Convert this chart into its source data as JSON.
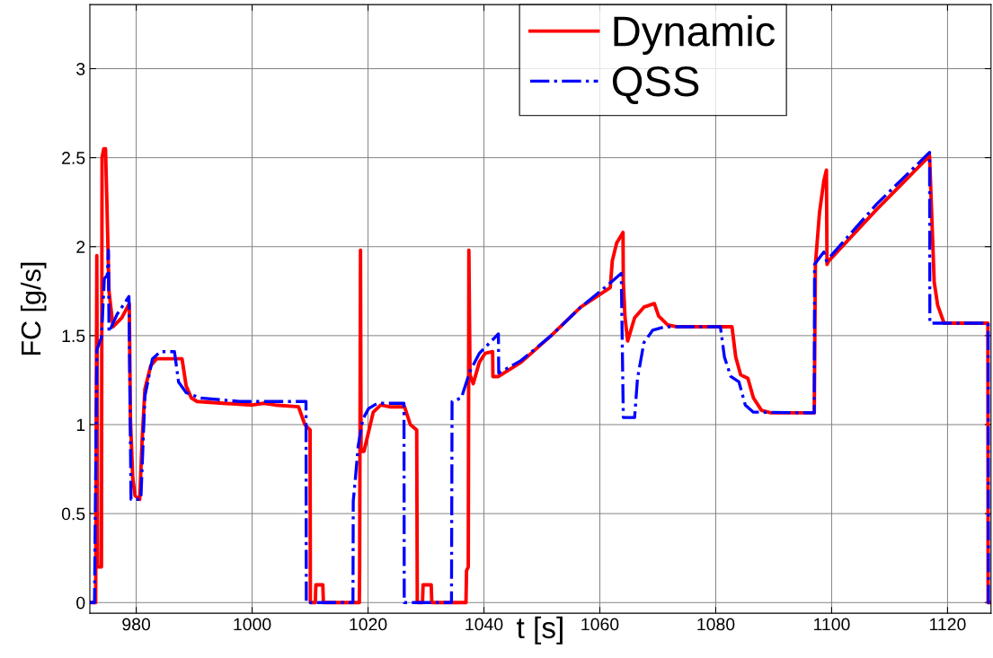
{
  "chart_data": {
    "type": "line",
    "xlabel": "t [s]",
    "ylabel": "FC [g/s]",
    "xlim": [
      972,
      1127.5
    ],
    "ylim": [
      -0.06,
      3.36
    ],
    "xticks": [
      980,
      1000,
      1020,
      1040,
      1060,
      1080,
      1100,
      1120
    ],
    "yticks": [
      0,
      0.5,
      1,
      1.5,
      2,
      2.5,
      3
    ],
    "grid": true,
    "legend": "top right",
    "marker": "none",
    "series": [
      {
        "name": "Dynamic",
        "color": "#ff0000",
        "line_style": "solid",
        "x": [
          972,
          973.0,
          973.2,
          973.35,
          973.5,
          973.7,
          973.8,
          974.0,
          974.1,
          974.4,
          974.7,
          974.9,
          975.3,
          976.0,
          977.5,
          978.8,
          979.0,
          979.4,
          979.8,
          980.6,
          981.0,
          981.5,
          982.5,
          983.5,
          987.9,
          988.6,
          989.5,
          990.5,
          995,
          1000,
          1002,
          1004,
          1008.0,
          1009.1,
          1010.0,
          1010.05,
          1010.9,
          1011.0,
          1012.2,
          1012.3,
          1018.5,
          1018.55,
          1018.7,
          1018.8,
          1019.3,
          1020.1,
          1020.9,
          1022.2,
          1023.7,
          1026.3,
          1027.3,
          1028.4,
          1028.5,
          1029.4,
          1029.5,
          1030.9,
          1031.0,
          1036.9,
          1037.0,
          1037.3,
          1037.4,
          1037.6,
          1038.15,
          1039.2,
          1040.2,
          1041.5,
          1041.55,
          1042.5,
          1046.4,
          1051.6,
          1056.7,
          1061.8,
          1062.15,
          1062.9,
          1064.0,
          1064.05,
          1064.35,
          1064.8,
          1066.0,
          1067.6,
          1069.4,
          1070.15,
          1071.7,
          1073.2,
          1082.8,
          1083.45,
          1084.3,
          1085.55,
          1086.5,
          1087.9,
          1089.5,
          1097.0,
          1097.2,
          1097.9,
          1098.65,
          1099.1,
          1099.2,
          1099.5,
          1107.8,
          1116.9,
          1117.2,
          1117.7,
          1118.3,
          1119.4,
          1126.96,
          1127.0,
          1127.5
        ],
        "values": [
          0,
          0,
          1.95,
          0.2,
          null,
          null,
          0.2,
          0.2,
          2.5,
          2.55,
          2.55,
          2.3,
          1.75,
          1.55,
          1.6,
          1.68,
          1.03,
          0.7,
          0.6,
          0.58,
          0.9,
          1.2,
          1.33,
          1.37,
          1.37,
          1.22,
          1.15,
          1.13,
          1.12,
          1.11,
          1.12,
          1.11,
          1.1,
          1.0,
          0.97,
          0,
          0,
          0.1,
          0.1,
          0,
          0,
          0.18,
          1.98,
          0.85,
          0.85,
          0.96,
          1.07,
          1.11,
          1.1,
          1.1,
          1.0,
          0.97,
          0,
          0,
          0.1,
          0.1,
          0,
          0,
          0.18,
          0.2,
          1.98,
          1.28,
          1.23,
          1.35,
          1.4,
          1.41,
          1.27,
          1.27,
          1.35,
          1.5,
          1.66,
          1.77,
          1.92,
          2.02,
          2.08,
          1.8,
          1.6,
          1.47,
          1.6,
          1.66,
          1.68,
          1.61,
          1.56,
          1.55,
          1.55,
          1.38,
          1.28,
          1.26,
          1.15,
          1.08,
          1.066,
          1.066,
          1.9,
          2.19,
          2.37,
          2.43,
          1.9,
          1.92,
          2.21,
          2.51,
          2.24,
          1.8,
          1.67,
          1.57,
          1.57,
          0,
          0
        ]
      },
      {
        "name": "QSS",
        "color": "#0000ff",
        "line_style": "dashdot",
        "x": [
          972,
          972.8,
          973.2,
          974.0,
          974.5,
          975.0,
          975.2,
          975.3,
          976.7,
          978.75,
          979.1,
          980.8,
          981.5,
          982.8,
          984.2,
          986.6,
          987.3,
          988.6,
          991.0,
          997.8,
          1009.3,
          1009.35,
          1017.4,
          1017.45,
          1017.8,
          1018.3,
          1019.1,
          1020.1,
          1021.6,
          1026.2,
          1026.25,
          1034.4,
          1034.5,
          1036.1,
          1037.6,
          1039.2,
          1042.5,
          1042.55,
          1046.4,
          1051.6,
          1056.7,
          1061.6,
          1063.7,
          1064.05,
          1066.0,
          1066.5,
          1067.6,
          1069.1,
          1071.2,
          1080.8,
          1081.5,
          1082.6,
          1084.0,
          1085.1,
          1086.5,
          1097.0,
          1097.05,
          1098.65,
          1099.1,
          1107.8,
          1116.9,
          1116.95,
          1127.0,
          1127.05,
          1127.5
        ],
        "values": [
          0,
          0,
          1.42,
          1.49,
          1.82,
          1.84,
          1.98,
          1.52,
          1.62,
          1.72,
          0.58,
          0.58,
          1.16,
          1.37,
          1.41,
          1.41,
          1.24,
          1.18,
          1.15,
          1.13,
          1.13,
          0,
          0,
          0.57,
          0.69,
          0.88,
          1.03,
          1.09,
          1.12,
          1.12,
          0,
          0,
          1.13,
          1.15,
          1.3,
          1.4,
          1.51,
          1.29,
          1.36,
          1.5,
          1.66,
          1.79,
          1.85,
          1.04,
          1.04,
          1.26,
          1.46,
          1.53,
          1.55,
          1.55,
          1.38,
          1.27,
          1.24,
          1.11,
          1.07,
          1.066,
          1.9,
          1.97,
          1.92,
          2.24,
          2.53,
          1.57,
          1.57,
          0,
          0
        ]
      }
    ]
  }
}
